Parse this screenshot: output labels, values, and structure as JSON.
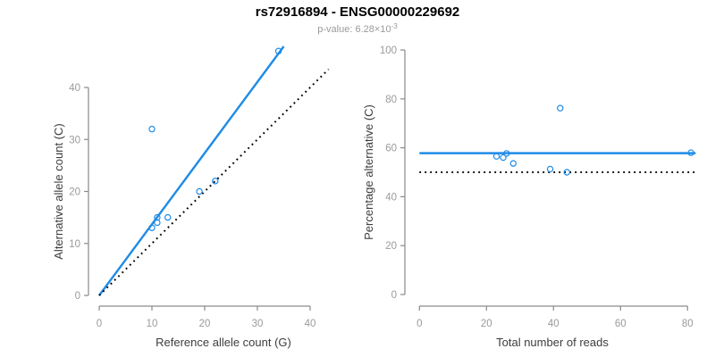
{
  "header": {
    "title": "rs72916894 - ENSG00000229692",
    "subtitle_label": "p-value: ",
    "p_value_mantissa": "6.28",
    "p_value_times": "×10",
    "p_value_exponent": "-3"
  },
  "colors": {
    "accent_blue": "#1e8be6",
    "axis_gray": "#8a8a8a",
    "tick_label_gray": "#9a9a9a",
    "axis_title_dark": "#3d3d3d",
    "reference_black": "#000000"
  },
  "chart_data": [
    {
      "type": "scatter",
      "panel": "allele-counts",
      "xlabel": "Reference allele count (G)",
      "ylabel": "Alternative allele count (C)",
      "xticks": [
        0,
        10,
        20,
        30,
        40
      ],
      "yticks": [
        0,
        10,
        20,
        30,
        40
      ],
      "xlim": [
        0,
        43.5
      ],
      "ylim": [
        0,
        48.3
      ],
      "points": [
        [
          34,
          47
        ],
        [
          10,
          32
        ],
        [
          22,
          22
        ],
        [
          19,
          20
        ],
        [
          13,
          15
        ],
        [
          11,
          15
        ],
        [
          11,
          14
        ],
        [
          10,
          13
        ]
      ],
      "lines": [
        {
          "name": "fitted-allelic-ratio-line",
          "style": "solid",
          "color_key": "accent_blue",
          "x1": 0,
          "y1": 0,
          "x2": 35,
          "y2": 47.9,
          "width": 2.4
        },
        {
          "name": "identity-line",
          "style": "dotted",
          "color_key": "reference_black",
          "x1": 0,
          "y1": 0,
          "x2": 43.5,
          "y2": 43.5,
          "width": 2
        }
      ]
    },
    {
      "type": "scatter",
      "panel": "percentage-vs-coverage",
      "xlabel": "Total number of reads",
      "ylabel": "Percentage alternative (C)",
      "xticks": [
        0,
        20,
        40,
        60,
        80
      ],
      "yticks": [
        0,
        20,
        40,
        60,
        80,
        100
      ],
      "xlim": [
        0,
        82.4
      ],
      "ylim": [
        0,
        100
      ],
      "points": [
        [
          81,
          58
        ],
        [
          42,
          76.2
        ],
        [
          44,
          50
        ],
        [
          39,
          51.3
        ],
        [
          28,
          53.6
        ],
        [
          26,
          57.7
        ],
        [
          25,
          56
        ],
        [
          23,
          56.5
        ]
      ],
      "lines": [
        {
          "name": "mean-percentage-line",
          "style": "solid",
          "color_key": "accent_blue",
          "x1": 0,
          "y1": 57.8,
          "x2": 82.4,
          "y2": 57.8,
          "width": 2.4
        },
        {
          "name": "null-fifty-percent-line",
          "style": "dotted",
          "color_key": "reference_black",
          "x1": 0,
          "y1": 50,
          "x2": 82.4,
          "y2": 50,
          "width": 2
        }
      ]
    }
  ]
}
